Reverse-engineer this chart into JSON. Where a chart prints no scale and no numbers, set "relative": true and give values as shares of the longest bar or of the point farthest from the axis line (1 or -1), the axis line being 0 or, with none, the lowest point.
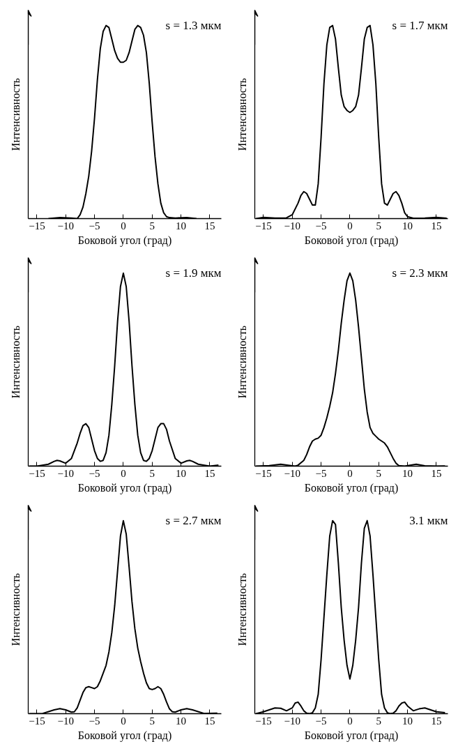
{
  "chart_data": [
    {
      "type": "line",
      "relative": true,
      "xlabel": "Боковой угол (град)",
      "ylabel": "Интенсивность",
      "annotations": [
        "s = 1.3 мкм"
      ],
      "xlim": [
        -16.5,
        17
      ],
      "xticks": [
        -15,
        -10,
        -5,
        0,
        5,
        10,
        15
      ],
      "grid": false,
      "line_style": "solid",
      "series": [
        {
          "color": "#000000",
          "x": [
            -13,
            -11,
            -9,
            -8,
            -7.5,
            -7,
            -6.5,
            -6,
            -5.5,
            -5,
            -4.5,
            -4,
            -3.5,
            -3,
            -2.5,
            -2,
            -1.5,
            -1,
            -0.5,
            0,
            0.5,
            1,
            1.5,
            2,
            2.5,
            3,
            3.5,
            4,
            4.5,
            5,
            5.5,
            6,
            6.5,
            7,
            7.5,
            8,
            9,
            11,
            12.7
          ],
          "values": [
            0,
            0.005,
            0.003,
            0,
            0.02,
            0.06,
            0.13,
            0.22,
            0.35,
            0.52,
            0.72,
            0.88,
            0.97,
            1.0,
            0.99,
            0.93,
            0.87,
            0.83,
            0.81,
            0.81,
            0.82,
            0.86,
            0.92,
            0.98,
            1.0,
            0.99,
            0.95,
            0.86,
            0.7,
            0.5,
            0.32,
            0.18,
            0.08,
            0.03,
            0.01,
            0.005,
            0.003,
            0.005,
            0
          ]
        }
      ]
    },
    {
      "type": "line",
      "relative": true,
      "xlabel": "Боковой угол (град)",
      "ylabel": "Интенсивность",
      "annotations": [
        "s = 1.7 мкм"
      ],
      "xlim": [
        -16.5,
        17
      ],
      "xticks": [
        -15,
        -10,
        -5,
        0,
        5,
        10,
        15
      ],
      "grid": false,
      "line_style": "solid",
      "series": [
        {
          "color": "#000000",
          "x": [
            -16.3,
            -15,
            -13,
            -11,
            -10,
            -9,
            -8.5,
            -8,
            -7.5,
            -7,
            -6.5,
            -6,
            -5.5,
            -5,
            -4.5,
            -4,
            -3.5,
            -3,
            -2.5,
            -2,
            -1.5,
            -1,
            -0.5,
            0,
            0.5,
            1,
            1.5,
            2,
            2.5,
            3,
            3.5,
            4,
            4.5,
            5,
            5.5,
            6,
            6.5,
            7,
            7.5,
            8,
            8.5,
            9,
            9.5,
            10,
            11,
            13,
            15,
            16.8
          ],
          "values": [
            0,
            0.006,
            0.003,
            0.004,
            0.02,
            0.08,
            0.12,
            0.14,
            0.13,
            0.1,
            0.07,
            0.07,
            0.18,
            0.42,
            0.7,
            0.9,
            0.99,
            1.0,
            0.93,
            0.78,
            0.64,
            0.58,
            0.56,
            0.55,
            0.56,
            0.58,
            0.64,
            0.78,
            0.93,
            0.99,
            1.0,
            0.9,
            0.7,
            0.42,
            0.18,
            0.08,
            0.07,
            0.1,
            0.13,
            0.14,
            0.12,
            0.08,
            0.03,
            0.01,
            0.002,
            0.003,
            0.006,
            0.002
          ]
        }
      ]
    },
    {
      "type": "line",
      "relative": true,
      "xlabel": "Боковой угол (град)",
      "ylabel": "Интенсивность",
      "annotations": [
        "s = 1.9 мкм"
      ],
      "xlim": [
        -16.5,
        17
      ],
      "xticks": [
        -15,
        -10,
        -5,
        0,
        5,
        10,
        15
      ],
      "grid": false,
      "line_style": "solid",
      "series": [
        {
          "color": "#000000",
          "x": [
            -16.3,
            -15,
            -13,
            -12,
            -11.5,
            -11,
            -10,
            -9,
            -8,
            -7.5,
            -7,
            -6.5,
            -6,
            -5.5,
            -5,
            -4.5,
            -4,
            -3.5,
            -3,
            -2.5,
            -2,
            -1.5,
            -1,
            -0.5,
            0,
            0.5,
            1,
            1.5,
            2,
            2.5,
            3,
            3.5,
            4,
            4.5,
            5,
            5.5,
            6,
            6.5,
            7,
            7.5,
            8,
            9,
            10,
            11,
            11.5,
            12,
            13,
            15,
            16.5
          ],
          "values": [
            0,
            0,
            0.01,
            0.025,
            0.03,
            0.027,
            0.015,
            0.04,
            0.12,
            0.17,
            0.21,
            0.22,
            0.2,
            0.14,
            0.08,
            0.04,
            0.025,
            0.03,
            0.07,
            0.16,
            0.32,
            0.52,
            0.75,
            0.93,
            1.0,
            0.93,
            0.75,
            0.52,
            0.32,
            0.16,
            0.07,
            0.03,
            0.025,
            0.04,
            0.08,
            0.14,
            0.2,
            0.22,
            0.22,
            0.19,
            0.13,
            0.04,
            0.015,
            0.027,
            0.03,
            0.025,
            0.01,
            0,
            0.005
          ]
        }
      ]
    },
    {
      "type": "line",
      "relative": true,
      "xlabel": "Боковой угол (град)",
      "ylabel": "Интенсивность",
      "annotations": [
        "s = 2.3 мкм"
      ],
      "xlim": [
        -16.5,
        17
      ],
      "xticks": [
        -15,
        -10,
        -5,
        0,
        5,
        10,
        15
      ],
      "grid": false,
      "line_style": "solid",
      "series": [
        {
          "color": "#000000",
          "x": [
            -16.3,
            -14,
            -12,
            -10,
            -9.5,
            -9,
            -8,
            -7.5,
            -7,
            -6.5,
            -6,
            -5.5,
            -5,
            -4.5,
            -4,
            -3.5,
            -3,
            -2.5,
            -2,
            -1.5,
            -1,
            -0.5,
            0,
            0.5,
            1,
            1.5,
            2,
            2.5,
            3,
            3.5,
            4,
            4.5,
            5,
            5.5,
            6,
            6.5,
            7,
            7.5,
            8,
            8.5,
            9.5,
            11.5,
            13,
            15,
            16.5
          ],
          "values": [
            0,
            0.003,
            0.01,
            0.002,
            0,
            0.005,
            0.03,
            0.06,
            0.1,
            0.13,
            0.14,
            0.145,
            0.16,
            0.2,
            0.25,
            0.31,
            0.38,
            0.48,
            0.6,
            0.74,
            0.86,
            0.96,
            1.0,
            0.96,
            0.86,
            0.72,
            0.56,
            0.4,
            0.28,
            0.2,
            0.17,
            0.155,
            0.14,
            0.13,
            0.12,
            0.1,
            0.07,
            0.04,
            0.015,
            0.003,
            0,
            0.01,
            0.002,
            0,
            0.001
          ]
        }
      ]
    },
    {
      "type": "line",
      "relative": true,
      "xlabel": "Боковой угол (град)",
      "ylabel": "Интенсивность",
      "annotations": [
        "s = 2.7 мкм"
      ],
      "xlim": [
        -16.5,
        17
      ],
      "xticks": [
        -15,
        -10,
        -5,
        0,
        5,
        10,
        15
      ],
      "grid": false,
      "line_style": "solid",
      "series": [
        {
          "color": "#000000",
          "x": [
            -16.3,
            -14,
            -12,
            -11,
            -10,
            -9,
            -8.5,
            -8,
            -7.5,
            -7,
            -6.5,
            -6,
            -5.5,
            -5,
            -4.5,
            -4,
            -3.5,
            -3,
            -2.5,
            -2,
            -1.5,
            -1,
            -0.5,
            0,
            0.5,
            1,
            1.5,
            2,
            2.5,
            3,
            3.5,
            4,
            4.5,
            5,
            5.5,
            6,
            6.5,
            7,
            7.5,
            8,
            8.5,
            9,
            10,
            11,
            12,
            14,
            16.3
          ],
          "values": [
            0,
            0.001,
            0.02,
            0.026,
            0.02,
            0.008,
            0.01,
            0.03,
            0.07,
            0.11,
            0.135,
            0.14,
            0.135,
            0.13,
            0.14,
            0.17,
            0.21,
            0.25,
            0.32,
            0.42,
            0.56,
            0.74,
            0.92,
            1.0,
            0.93,
            0.76,
            0.58,
            0.44,
            0.34,
            0.27,
            0.21,
            0.16,
            0.13,
            0.125,
            0.13,
            0.14,
            0.13,
            0.1,
            0.06,
            0.025,
            0.01,
            0.008,
            0.02,
            0.026,
            0.02,
            0.001,
            0.003
          ]
        }
      ]
    },
    {
      "type": "line",
      "relative": true,
      "xlabel": "Боковой угол (град)",
      "ylabel": "Интенсивность",
      "annotations": [
        "3.1 мкм"
      ],
      "xlim": [
        -16.5,
        17
      ],
      "xticks": [
        -15,
        -10,
        -5,
        0,
        5,
        10,
        15
      ],
      "grid": false,
      "line_style": "solid",
      "series": [
        {
          "color": "#000000",
          "x": [
            -16.3,
            -15,
            -14,
            -13,
            -12,
            -11,
            -10,
            -9.5,
            -9,
            -8.5,
            -8,
            -7.5,
            -7,
            -6.5,
            -6,
            -5.5,
            -5,
            -4.5,
            -4,
            -3.5,
            -3,
            -2.5,
            -2,
            -1.5,
            -1,
            -0.5,
            0,
            0.5,
            1,
            1.5,
            2,
            2.5,
            3,
            3.5,
            4,
            4.5,
            5,
            5.5,
            6,
            6.5,
            7,
            7.5,
            8,
            8.5,
            9,
            9.5,
            10,
            11,
            12,
            13,
            14,
            15,
            16.5
          ],
          "values": [
            0,
            0.01,
            0.02,
            0.03,
            0.028,
            0.015,
            0.03,
            0.055,
            0.06,
            0.04,
            0.015,
            0.003,
            0,
            0.005,
            0.03,
            0.1,
            0.28,
            0.5,
            0.72,
            0.92,
            1.0,
            0.98,
            0.78,
            0.55,
            0.38,
            0.25,
            0.18,
            0.25,
            0.38,
            0.55,
            0.78,
            0.96,
            1.0,
            0.92,
            0.72,
            0.5,
            0.28,
            0.1,
            0.03,
            0.005,
            0,
            0.003,
            0.015,
            0.04,
            0.055,
            0.06,
            0.04,
            0.015,
            0.025,
            0.03,
            0.02,
            0.01,
            0.005
          ]
        }
      ]
    }
  ]
}
